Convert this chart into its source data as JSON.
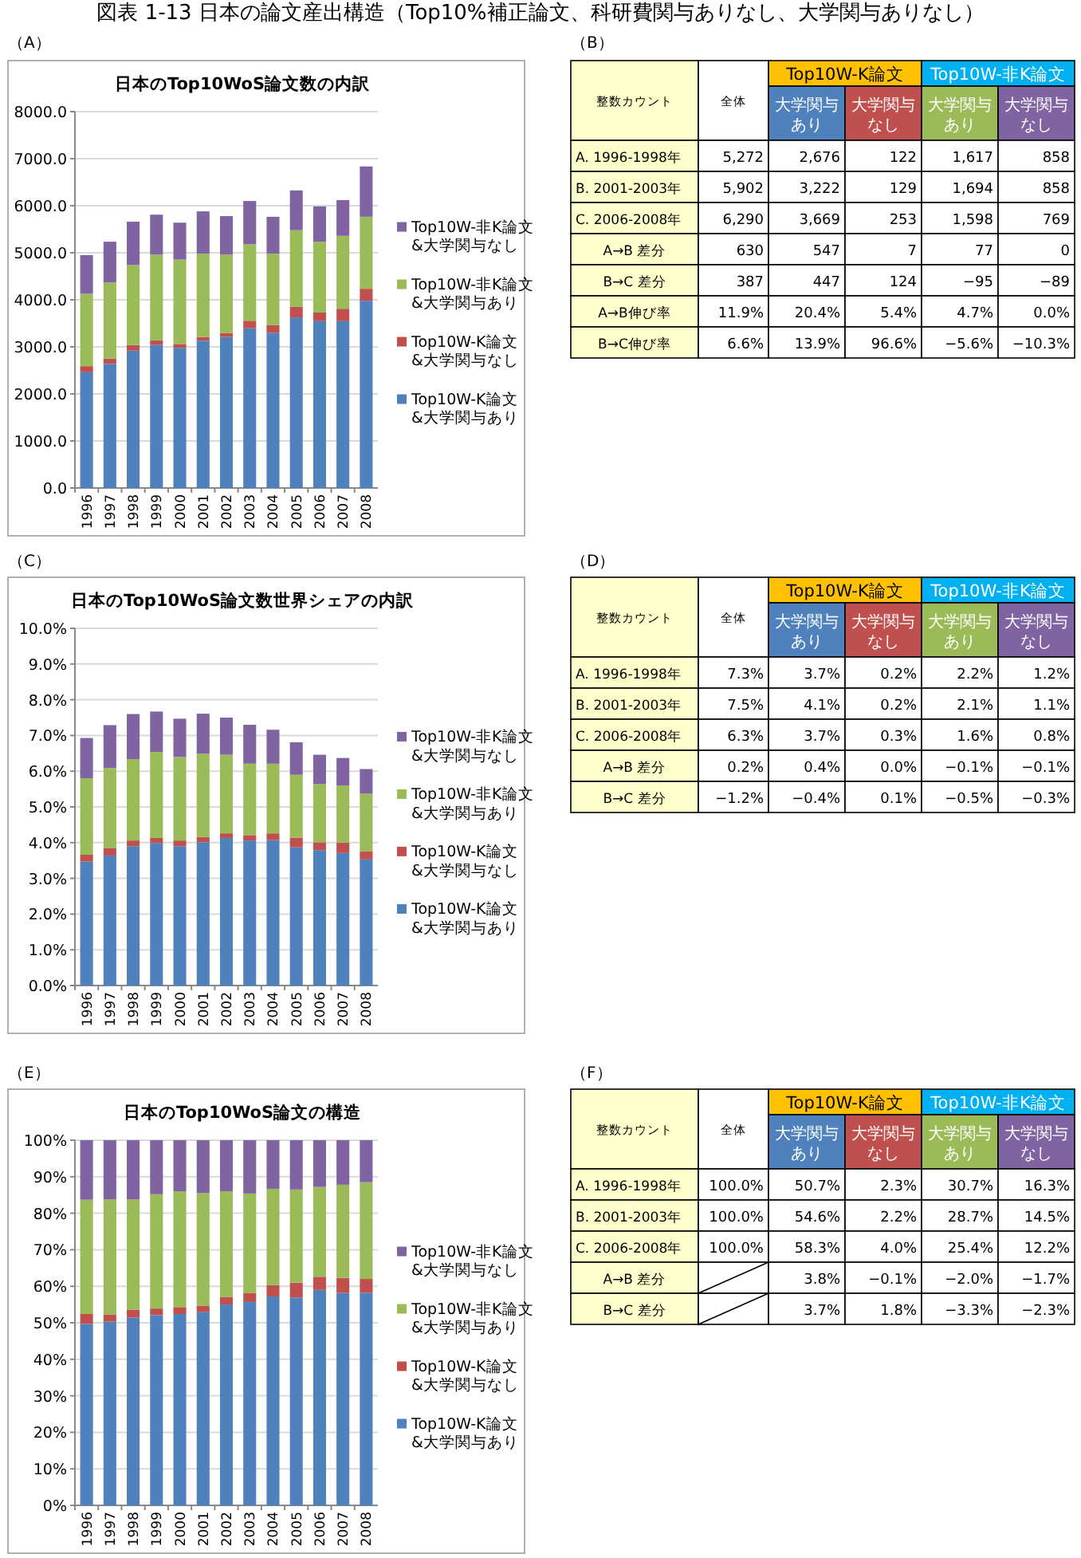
{
  "chart_data": [
    {
      "type": "bar",
      "stacked": true,
      "title": "日本のTop10WoS論文数の内訳",
      "annotations": [
        "（A）",
        "図表 1-13  日本の論文産出構造（Top10%補正論文、科研費関与ありなし、大学関与ありなし）"
      ],
      "categories": [
        "1996",
        "1997",
        "1998",
        "1999",
        "2000",
        "2001",
        "2002",
        "2003",
        "2004",
        "2005",
        "2006",
        "2007",
        "2008"
      ],
      "ylim": [
        0,
        8000
      ],
      "yticks": [
        {
          "value": 0,
          "label": "0.0"
        },
        {
          "value": 1000,
          "label": "1000.0"
        },
        {
          "value": 2000,
          "label": "2000.0"
        },
        {
          "value": 3000,
          "label": "3000.0"
        },
        {
          "value": 4000,
          "label": "4000.0"
        },
        {
          "value": 5000,
          "label": "5000.0"
        },
        {
          "value": 6000,
          "label": "6000.0"
        },
        {
          "value": 7000,
          "label": "7000.0"
        },
        {
          "value": 8000,
          "label": "8000.0"
        }
      ],
      "grid": "y",
      "legend": "right",
      "series": [
        {
          "name": "Top10W-K論文\n&大学関与あり",
          "color": "#4f81bd",
          "values": [
            2460,
            2635,
            2920,
            3040,
            2980,
            3130,
            3210,
            3395,
            3300,
            3625,
            3545,
            3545,
            3980
          ]
        },
        {
          "name": "Top10W-K論文\n&大学関与なし",
          "color": "#c0504d",
          "values": [
            130,
            115,
            120,
            100,
            80,
            80,
            80,
            160,
            160,
            230,
            185,
            265,
            255
          ]
        },
        {
          "name": "Top10W-非K論文\n&大学関与あり",
          "color": "#9bbb59",
          "values": [
            1540,
            1620,
            1700,
            1820,
            1795,
            1770,
            1670,
            1625,
            1520,
            1625,
            1505,
            1550,
            1530
          ]
        },
        {
          "name": "Top10W-非K論文\n&大学関与なし",
          "color": "#8064a2",
          "values": [
            820,
            865,
            920,
            850,
            785,
            900,
            820,
            920,
            785,
            845,
            750,
            760,
            1070
          ]
        }
      ]
    },
    {
      "type": "other",
      "annotations": [
        "（B）",
        "整数カウント",
        "Top10W-K論文",
        "Top10W-非K論文"
      ],
      "categories": [
        "全体",
        "大学関与あり",
        "大学関与なし",
        "大学関与あり",
        "大学関与なし"
      ],
      "colors": [
        "#ffffff",
        "#4f81bd",
        "#c0504d",
        "#9bbb59",
        "#8064a2"
      ],
      "y_categories": [
        "A. 1996-1998年",
        "B. 2001-2003年",
        "C. 2006-2008年",
        "A→B 差分",
        "B→C 差分",
        "A→B伸び率",
        "B→C伸び率"
      ],
      "cell_labels": [
        [
          "5,272",
          "2,676",
          "122",
          "1,617",
          "858"
        ],
        [
          "5,902",
          "3,222",
          "129",
          "1,694",
          "858"
        ],
        [
          "6,290",
          "3,669",
          "253",
          "1,598",
          "769"
        ],
        [
          "630",
          "547",
          "7",
          "77",
          "0"
        ],
        [
          "387",
          "447",
          "124",
          "−95",
          "−89"
        ],
        [
          "11.9%",
          "20.4%",
          "5.4%",
          "4.7%",
          "0.0%"
        ],
        [
          "6.6%",
          "13.9%",
          "96.6%",
          "−5.6%",
          "−10.3%"
        ]
      ]
    },
    {
      "type": "bar",
      "stacked": true,
      "title": "日本のTop10WoS論文数世界シェアの内訳",
      "annotations": [
        "（C）"
      ],
      "categories": [
        "1996",
        "1997",
        "1998",
        "1999",
        "2000",
        "2001",
        "2002",
        "2003",
        "2004",
        "2005",
        "2006",
        "2007",
        "2008"
      ],
      "ylim": [
        0,
        10
      ],
      "yticks": [
        {
          "value": 0,
          "label": "0.0%"
        },
        {
          "value": 1,
          "label": "1.0%"
        },
        {
          "value": 2,
          "label": "2.0%"
        },
        {
          "value": 3,
          "label": "3.0%"
        },
        {
          "value": 4,
          "label": "4.0%"
        },
        {
          "value": 5,
          "label": "5.0%"
        },
        {
          "value": 6,
          "label": "6.0%"
        },
        {
          "value": 7,
          "label": "7.0%"
        },
        {
          "value": 8,
          "label": "8.0%"
        },
        {
          "value": 9,
          "label": "9.0%"
        },
        {
          "value": 10,
          "label": "10.0%"
        }
      ],
      "grid": "y",
      "legend": "right",
      "series": [
        {
          "name": "Top10W-K論文\n&大学関与あり",
          "color": "#4f81bd",
          "values": [
            3.47,
            3.64,
            3.9,
            3.99,
            3.9,
            4.01,
            4.13,
            4.06,
            4.07,
            3.87,
            3.79,
            3.71,
            3.53
          ]
        },
        {
          "name": "Top10W-K論文\n&大学関与なし",
          "color": "#c0504d",
          "values": [
            0.19,
            0.2,
            0.16,
            0.14,
            0.16,
            0.15,
            0.13,
            0.15,
            0.19,
            0.27,
            0.22,
            0.29,
            0.23
          ]
        },
        {
          "name": "Top10W-非K論文\n&大学関与あり",
          "color": "#9bbb59",
          "values": [
            2.14,
            2.25,
            2.28,
            2.41,
            2.34,
            2.33,
            2.2,
            2.0,
            1.95,
            1.76,
            1.63,
            1.6,
            1.61
          ]
        },
        {
          "name": "Top10W-非K論文\n&大学関与なし",
          "color": "#8064a2",
          "values": [
            1.13,
            1.2,
            1.26,
            1.13,
            1.07,
            1.12,
            1.04,
            1.09,
            0.95,
            0.91,
            0.82,
            0.77,
            0.69
          ]
        }
      ]
    },
    {
      "type": "other",
      "annotations": [
        "（D）",
        "整数カウント",
        "Top10W-K論文",
        "Top10W-非K論文"
      ],
      "categories": [
        "全体",
        "大学関与あり",
        "大学関与なし",
        "大学関与あり",
        "大学関与なし"
      ],
      "colors": [
        "#ffffff",
        "#4f81bd",
        "#c0504d",
        "#9bbb59",
        "#8064a2"
      ],
      "y_categories": [
        "A. 1996-1998年",
        "B. 2001-2003年",
        "C. 2006-2008年",
        "A→B 差分",
        "B→C 差分"
      ],
      "cell_labels": [
        [
          "7.3%",
          "3.7%",
          "0.2%",
          "2.2%",
          "1.2%"
        ],
        [
          "7.5%",
          "4.1%",
          "0.2%",
          "2.1%",
          "1.1%"
        ],
        [
          "6.3%",
          "3.7%",
          "0.3%",
          "1.6%",
          "0.8%"
        ],
        [
          "0.2%",
          "0.4%",
          "0.0%",
          "−0.1%",
          "−0.1%"
        ],
        [
          "−1.2%",
          "−0.4%",
          "0.1%",
          "−0.5%",
          "−0.3%"
        ]
      ]
    },
    {
      "type": "bar",
      "stacked": true,
      "title": "日本のTop10WoS論文の構造",
      "annotations": [
        "（E）"
      ],
      "categories": [
        "1996",
        "1997",
        "1998",
        "1999",
        "2000",
        "2001",
        "2002",
        "2003",
        "2004",
        "2005",
        "2006",
        "2007",
        "2008"
      ],
      "ylim": [
        0,
        100
      ],
      "yticks": [
        {
          "value": 0,
          "label": "0%"
        },
        {
          "value": 10,
          "label": "10%"
        },
        {
          "value": 20,
          "label": "20%"
        },
        {
          "value": 30,
          "label": "30%"
        },
        {
          "value": 40,
          "label": "40%"
        },
        {
          "value": 50,
          "label": "50%"
        },
        {
          "value": 60,
          "label": "60%"
        },
        {
          "value": 70,
          "label": "70%"
        },
        {
          "value": 80,
          "label": "80%"
        },
        {
          "value": 90,
          "label": "90%"
        },
        {
          "value": 100,
          "label": "100%"
        }
      ],
      "grid": "y",
      "legend": "right",
      "series": [
        {
          "name": "Top10W-K論文\n&大学関与あり",
          "color": "#4f81bd",
          "values": [
            49.7,
            50.3,
            51.4,
            52.1,
            52.4,
            52.9,
            55.0,
            55.7,
            57.2,
            56.9,
            59.0,
            58.2,
            58.2
          ]
        },
        {
          "name": "Top10W-K論文\n&大学関与なし",
          "color": "#c0504d",
          "values": [
            2.7,
            2.0,
            2.2,
            1.8,
            1.9,
            1.8,
            2.0,
            2.5,
            3.1,
            4.1,
            3.6,
            4.1,
            3.8
          ]
        },
        {
          "name": "Top10W-非K論文\n&大学関与あり",
          "color": "#9bbb59",
          "values": [
            31.3,
            31.5,
            30.2,
            31.3,
            31.7,
            30.8,
            29.0,
            27.2,
            26.4,
            25.5,
            24.6,
            25.5,
            26.5
          ]
        },
        {
          "name": "Top10W-非K論文\n&大学関与なし",
          "color": "#8064a2",
          "values": [
            16.3,
            16.2,
            16.2,
            14.8,
            14.0,
            14.5,
            14.0,
            14.6,
            13.3,
            13.5,
            12.8,
            12.2,
            11.5
          ]
        }
      ]
    },
    {
      "type": "other",
      "annotations": [
        "（F）",
        "整数カウント",
        "Top10W-K論文",
        "Top10W-非K論文"
      ],
      "categories": [
        "全体",
        "大学関与あり",
        "大学関与なし",
        "大学関与あり",
        "大学関与なし"
      ],
      "colors": [
        "#ffffff",
        "#4f81bd",
        "#c0504d",
        "#9bbb59",
        "#8064a2"
      ],
      "y_categories": [
        "A. 1996-1998年",
        "B. 2001-2003年",
        "C. 2006-2008年",
        "A→B 差分",
        "B→C 差分"
      ],
      "cell_labels": [
        [
          "100.0%",
          "50.7%",
          "2.3%",
          "30.7%",
          "16.3%"
        ],
        [
          "100.0%",
          "54.6%",
          "2.2%",
          "28.7%",
          "14.5%"
        ],
        [
          "100.0%",
          "58.3%",
          "4.0%",
          "25.4%",
          "12.2%"
        ],
        [
          null,
          "3.8%",
          "−0.1%",
          "−2.0%",
          "−1.7%"
        ],
        [
          null,
          "3.7%",
          "1.8%",
          "−3.3%",
          "−2.3%"
        ]
      ]
    }
  ]
}
